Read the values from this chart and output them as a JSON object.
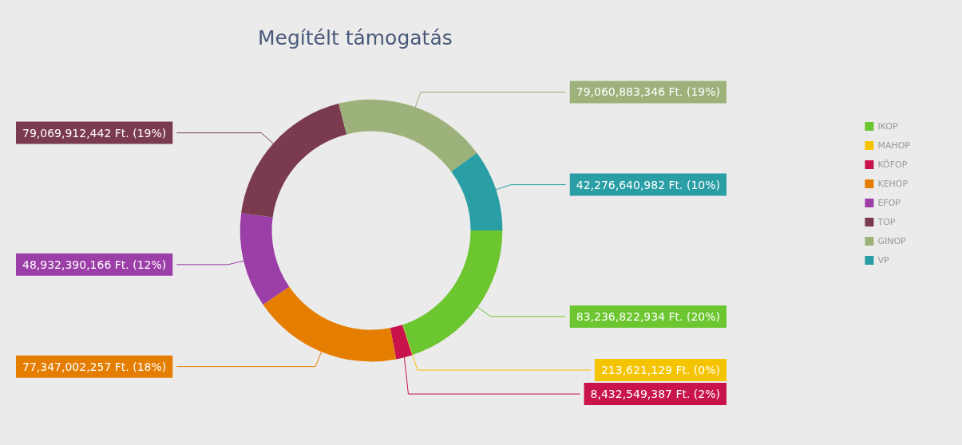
{
  "chart_data": {
    "type": "donut",
    "title": "Megítélt támogatás",
    "categories": [
      "IKOP",
      "MAHOP",
      "KÖFOP",
      "KEHOP",
      "EFOP",
      "TOP",
      "GINOP",
      "VP"
    ],
    "values": [
      83236822934,
      213621129,
      8432549387,
      77347002257,
      48932390166,
      79069912442,
      79060883346,
      42276640982
    ],
    "colors": [
      "#6cc62f",
      "#f5c400",
      "#c8144a",
      "#e57e00",
      "#9b3ea8",
      "#7b3b4e",
      "#9db27a",
      "#2a9ea5"
    ],
    "value_labels": [
      "83,236,822,934 Ft. (20%)",
      "213,621,129 Ft. (0%)",
      "8,432,549,387 Ft. (2%)",
      "77,347,002,257 Ft. (18%)",
      "48,932,390,166 Ft. (12%)",
      "79,069,912,442 Ft. (19%)",
      "79,060,883,346 Ft. (19%)",
      "42,276,640,982 Ft. (10%)"
    ],
    "legend": "top right"
  }
}
